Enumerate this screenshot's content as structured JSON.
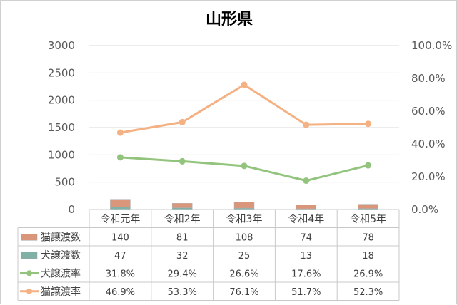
{
  "chart_data": {
    "type": "bar+line",
    "title": "山形県",
    "categories": [
      "令和元年",
      "令和2年",
      "令和3年",
      "令和4年",
      "令和5年"
    ],
    "y_left": {
      "min": 0,
      "max": 3000,
      "step": 500,
      "ticks": [
        "0",
        "500",
        "1000",
        "1500",
        "2000",
        "2500",
        "3000"
      ]
    },
    "y_right": {
      "min": 0,
      "max": 1.0,
      "step": 0.2,
      "ticks": [
        "0.0%",
        "20.0%",
        "40.0%",
        "60.0%",
        "80.0%",
        "100.0%"
      ]
    },
    "grid": true,
    "legend": "table-left",
    "series": [
      {
        "name": "猫譲渡数",
        "kind": "bar",
        "axis": "left",
        "stack": "a",
        "color": "#d9967a",
        "values": [
          140,
          81,
          108,
          74,
          78
        ],
        "labels": [
          "140",
          "81",
          "108",
          "74",
          "78"
        ]
      },
      {
        "name": "犬譲渡数",
        "kind": "bar",
        "axis": "left",
        "stack": "a",
        "color": "#7fb1a6",
        "values": [
          47,
          32,
          25,
          13,
          18
        ],
        "labels": [
          "47",
          "32",
          "25",
          "13",
          "18"
        ]
      },
      {
        "name": "犬譲渡率",
        "kind": "line",
        "axis": "right",
        "color": "#93c47d",
        "values": [
          0.318,
          0.294,
          0.266,
          0.176,
          0.269
        ],
        "labels": [
          "31.8%",
          "29.4%",
          "26.6%",
          "17.6%",
          "26.9%"
        ]
      },
      {
        "name": "猫譲渡率",
        "kind": "line",
        "axis": "right",
        "color": "#f4b183",
        "values": [
          0.469,
          0.533,
          0.761,
          0.517,
          0.523
        ],
        "labels": [
          "46.9%",
          "53.3%",
          "76.1%",
          "51.7%",
          "52.3%"
        ]
      }
    ]
  }
}
